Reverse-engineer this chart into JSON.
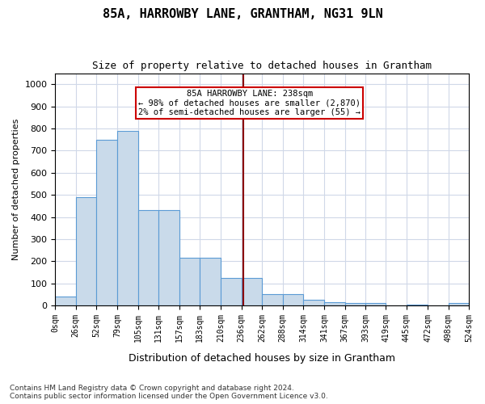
{
  "title": "85A, HARROWBY LANE, GRANTHAM, NG31 9LN",
  "subtitle": "Size of property relative to detached houses in Grantham",
  "xlabel": "Distribution of detached houses by size in Grantham",
  "ylabel": "Number of detached properties",
  "bin_edges": [
    0,
    26,
    52,
    79,
    105,
    131,
    157,
    183,
    210,
    236,
    262,
    288,
    314,
    341,
    367,
    393,
    419,
    445,
    472,
    498,
    524
  ],
  "bin_labels": [
    "0sqm",
    "26sqm",
    "52sqm",
    "79sqm",
    "105sqm",
    "131sqm",
    "157sqm",
    "183sqm",
    "210sqm",
    "236sqm",
    "262sqm",
    "288sqm",
    "314sqm",
    "341sqm",
    "367sqm",
    "393sqm",
    "419sqm",
    "445sqm",
    "472sqm",
    "498sqm",
    "524sqm"
  ],
  "bar_heights": [
    40,
    490,
    750,
    790,
    430,
    430,
    215,
    215,
    125,
    125,
    50,
    50,
    25,
    15,
    10,
    10,
    0,
    5,
    0,
    10
  ],
  "bar_color": "#c9daea",
  "bar_edge_color": "#5b9bd5",
  "vline_x": 238,
  "vline_color": "#8b0000",
  "annotation_text": "85A HARROWBY LANE: 238sqm\n← 98% of detached houses are smaller (2,870)\n2% of semi-detached houses are larger (55) →",
  "annotation_box_color": "#ffffff",
  "annotation_box_edge": "#cc0000",
  "ylim": [
    0,
    1050
  ],
  "yticks": [
    0,
    100,
    200,
    300,
    400,
    500,
    600,
    700,
    800,
    900,
    1000
  ],
  "footer_text": "Contains HM Land Registry data © Crown copyright and database right 2024.\nContains public sector information licensed under the Open Government Licence v3.0.",
  "bg_color": "#ffffff",
  "grid_color": "#d0d8e8"
}
